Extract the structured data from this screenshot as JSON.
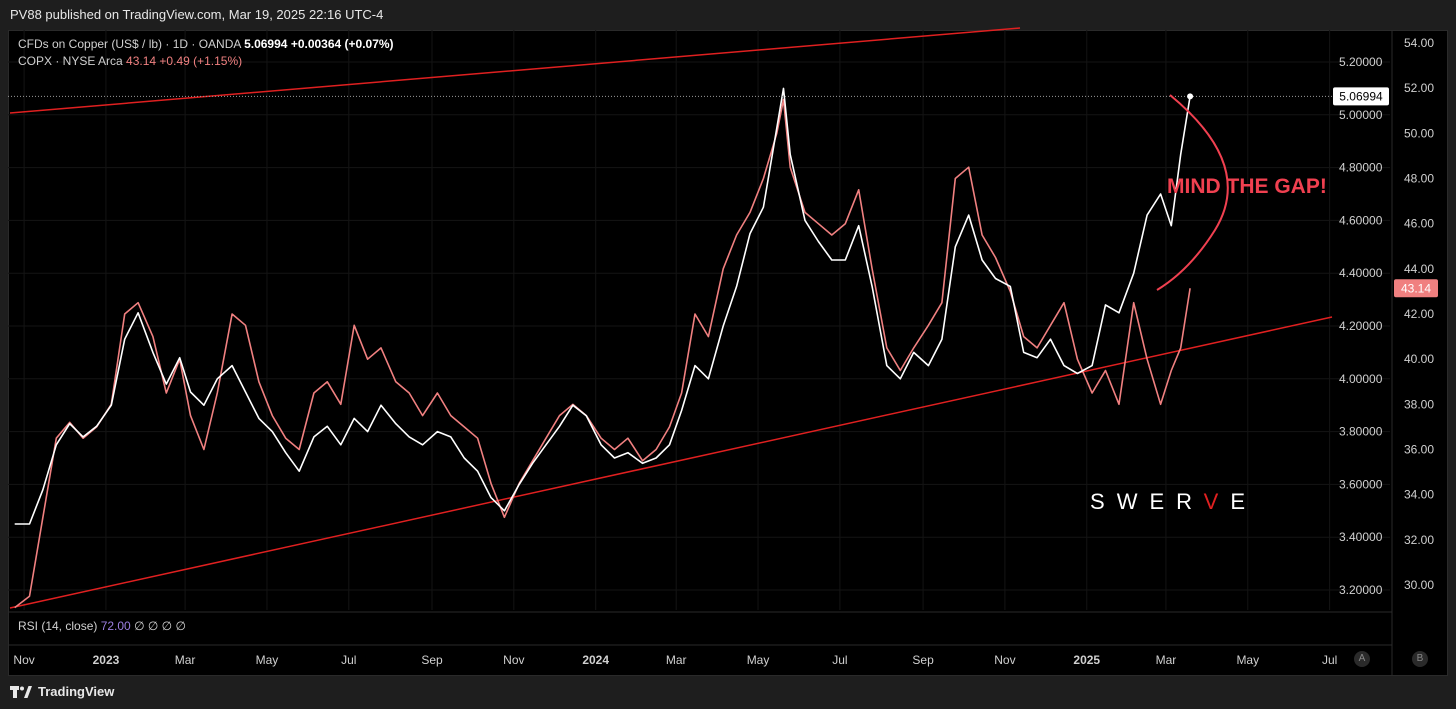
{
  "header": {
    "published": "PV88 published on TradingView.com, Mar 19, 2025 22:16 UTC-4"
  },
  "legend": {
    "copper_name": "CFDs on Copper (US$ / lb) · 1D · OANDA",
    "copper_price": "5.06994",
    "copper_change": "+0.00364 (+0.07%)",
    "copx_name": "COPX · NYSE Arca",
    "copx_price": "43.14",
    "copx_change": "+0.49 (+1.15%)"
  },
  "rsi": {
    "label": "RSI (14, close)",
    "value": "72.00",
    "extra": "∅ ∅ ∅ ∅"
  },
  "annotation": {
    "text": "MIND THE GAP!",
    "watermark": "SWERVE"
  },
  "footer": {
    "brand": "TradingView",
    "btn_a": "A",
    "btn_b": "B"
  },
  "colors": {
    "copper": "#ffffff",
    "copx": "#f08080",
    "trend": "#e02020",
    "annot": "#f04050"
  },
  "chart_data": {
    "type": "line",
    "x_ticks": [
      "Nov",
      "2023",
      "Mar",
      "May",
      "Jul",
      "Sep",
      "Nov",
      "2024",
      "Mar",
      "May",
      "Jul",
      "Sep",
      "Nov",
      "2025",
      "Mar",
      "May",
      "Jul"
    ],
    "y_ticks_left": [
      "5.20000",
      "5.00000",
      "4.80000",
      "4.60000",
      "4.40000",
      "4.20000",
      "4.00000",
      "3.80000",
      "3.60000",
      "3.40000",
      "3.20000"
    ],
    "y_ticks_right": [
      "54.00",
      "52.00",
      "50.00",
      "48.00",
      "46.00",
      "44.00",
      "42.00",
      "40.00",
      "38.00",
      "36.00",
      "34.00",
      "32.00",
      "30.00"
    ],
    "last_copper_label": "5.06994",
    "last_copx_label": "43.14",
    "series": [
      {
        "name": "CFDs on Copper (US$ / lb)",
        "axis": "left",
        "x": [
          "2022-10-25",
          "2022-11-05",
          "2022-11-15",
          "2022-11-25",
          "2022-12-05",
          "2022-12-15",
          "2022-12-25",
          "2023-01-05",
          "2023-01-15",
          "2023-01-25",
          "2023-02-05",
          "2023-02-15",
          "2023-02-25",
          "2023-03-05",
          "2023-03-15",
          "2023-03-25",
          "2023-04-05",
          "2023-04-15",
          "2023-04-25",
          "2023-05-05",
          "2023-05-15",
          "2023-05-25",
          "2023-06-05",
          "2023-06-15",
          "2023-06-25",
          "2023-07-05",
          "2023-07-15",
          "2023-07-25",
          "2023-08-05",
          "2023-08-15",
          "2023-08-25",
          "2023-09-05",
          "2023-09-15",
          "2023-09-25",
          "2023-10-05",
          "2023-10-15",
          "2023-10-25",
          "2023-11-05",
          "2023-11-15",
          "2023-11-25",
          "2023-12-05",
          "2023-12-15",
          "2023-12-25",
          "2024-01-05",
          "2024-01-15",
          "2024-01-25",
          "2024-02-05",
          "2024-02-15",
          "2024-02-25",
          "2024-03-05",
          "2024-03-15",
          "2024-03-25",
          "2024-04-05",
          "2024-04-15",
          "2024-04-25",
          "2024-05-05",
          "2024-05-15",
          "2024-05-20",
          "2024-05-25",
          "2024-06-05",
          "2024-06-15",
          "2024-06-25",
          "2024-07-05",
          "2024-07-15",
          "2024-07-25",
          "2024-08-05",
          "2024-08-15",
          "2024-08-25",
          "2024-09-05",
          "2024-09-15",
          "2024-09-25",
          "2024-10-05",
          "2024-10-15",
          "2024-10-25",
          "2024-11-05",
          "2024-11-15",
          "2024-11-25",
          "2024-12-05",
          "2024-12-15",
          "2024-12-25",
          "2025-01-05",
          "2025-01-15",
          "2025-01-25",
          "2025-02-05",
          "2025-02-15",
          "2025-02-25",
          "2025-03-05",
          "2025-03-12",
          "2025-03-19"
        ],
        "values": [
          3.45,
          3.45,
          3.58,
          3.75,
          3.83,
          3.78,
          3.82,
          3.9,
          4.15,
          4.25,
          4.1,
          3.98,
          4.08,
          3.95,
          3.9,
          4.0,
          4.05,
          3.95,
          3.85,
          3.8,
          3.72,
          3.65,
          3.78,
          3.82,
          3.75,
          3.85,
          3.8,
          3.9,
          3.83,
          3.78,
          3.75,
          3.8,
          3.78,
          3.7,
          3.65,
          3.55,
          3.5,
          3.6,
          3.68,
          3.75,
          3.82,
          3.9,
          3.86,
          3.75,
          3.7,
          3.72,
          3.68,
          3.7,
          3.75,
          3.88,
          4.05,
          4.0,
          4.2,
          4.35,
          4.55,
          4.65,
          4.95,
          5.1,
          4.85,
          4.6,
          4.52,
          4.45,
          4.45,
          4.58,
          4.35,
          4.05,
          4.0,
          4.1,
          4.05,
          4.15,
          4.5,
          4.62,
          4.45,
          4.38,
          4.35,
          4.1,
          4.08,
          4.15,
          4.05,
          4.02,
          4.05,
          4.28,
          4.25,
          4.4,
          4.62,
          4.7,
          4.58,
          4.85,
          5.07
        ]
      },
      {
        "name": "COPX · NYSE Arca",
        "axis": "right",
        "x": [
          "2022-10-25",
          "2022-11-05",
          "2022-11-15",
          "2022-11-25",
          "2022-12-05",
          "2022-12-15",
          "2022-12-25",
          "2023-01-05",
          "2023-01-15",
          "2023-01-25",
          "2023-02-05",
          "2023-02-15",
          "2023-02-25",
          "2023-03-05",
          "2023-03-15",
          "2023-03-25",
          "2023-04-05",
          "2023-04-15",
          "2023-04-25",
          "2023-05-05",
          "2023-05-15",
          "2023-05-25",
          "2023-06-05",
          "2023-06-15",
          "2023-06-25",
          "2023-07-05",
          "2023-07-15",
          "2023-07-25",
          "2023-08-05",
          "2023-08-15",
          "2023-08-25",
          "2023-09-05",
          "2023-09-15",
          "2023-09-25",
          "2023-10-05",
          "2023-10-15",
          "2023-10-25",
          "2023-11-05",
          "2023-11-15",
          "2023-11-25",
          "2023-12-05",
          "2023-12-15",
          "2023-12-25",
          "2024-01-05",
          "2024-01-15",
          "2024-01-25",
          "2024-02-05",
          "2024-02-15",
          "2024-02-25",
          "2024-03-05",
          "2024-03-15",
          "2024-03-25",
          "2024-04-05",
          "2024-04-15",
          "2024-04-25",
          "2024-05-05",
          "2024-05-15",
          "2024-05-20",
          "2024-05-25",
          "2024-06-05",
          "2024-06-15",
          "2024-06-25",
          "2024-07-05",
          "2024-07-15",
          "2024-07-25",
          "2024-08-05",
          "2024-08-15",
          "2024-08-25",
          "2024-09-05",
          "2024-09-15",
          "2024-09-25",
          "2024-10-05",
          "2024-10-15",
          "2024-10-25",
          "2024-11-05",
          "2024-11-15",
          "2024-11-25",
          "2024-12-05",
          "2024-12-15",
          "2024-12-25",
          "2025-01-05",
          "2025-01-15",
          "2025-01-25",
          "2025-02-05",
          "2025-02-15",
          "2025-02-25",
          "2025-03-05",
          "2025-03-12",
          "2025-03-19"
        ],
        "values": [
          29.0,
          29.5,
          33.0,
          36.5,
          37.2,
          36.5,
          37.0,
          38.0,
          42.0,
          42.5,
          41.0,
          38.5,
          40.0,
          37.5,
          36.0,
          38.5,
          42.0,
          41.5,
          39.0,
          37.5,
          36.5,
          36.0,
          38.5,
          39.0,
          38.0,
          41.5,
          40.0,
          40.5,
          39.0,
          38.5,
          37.5,
          38.5,
          37.5,
          37.0,
          36.5,
          34.5,
          33.0,
          34.5,
          35.5,
          36.5,
          37.5,
          38.0,
          37.5,
          36.5,
          36.0,
          36.5,
          35.5,
          36.0,
          37.0,
          38.5,
          42.0,
          41.0,
          44.0,
          45.5,
          46.5,
          48.0,
          50.0,
          51.5,
          48.5,
          46.5,
          46.0,
          45.5,
          46.0,
          47.5,
          44.0,
          40.5,
          39.5,
          40.5,
          41.5,
          42.5,
          48.0,
          48.5,
          45.5,
          44.5,
          43.0,
          41.0,
          40.5,
          41.5,
          42.5,
          40.0,
          38.5,
          39.5,
          38.0,
          42.5,
          40.0,
          38.0,
          39.5,
          40.5,
          43.14
        ]
      }
    ]
  }
}
